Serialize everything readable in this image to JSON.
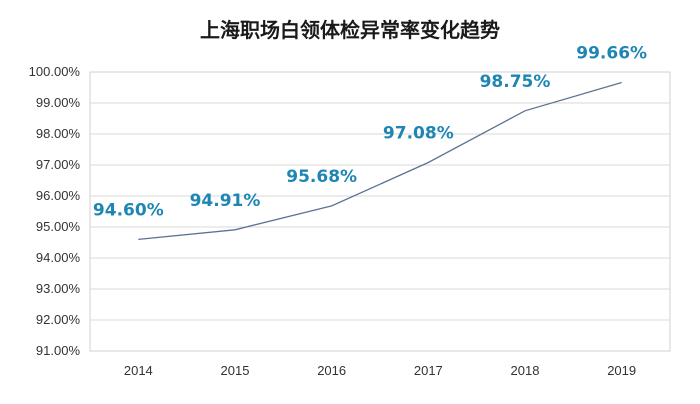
{
  "chart_data": {
    "type": "line",
    "title": "上海职场白领体检异常率变化趋势",
    "categories": [
      "2014",
      "2015",
      "2016",
      "2017",
      "2018",
      "2019"
    ],
    "series": [
      {
        "values": [
          94.6,
          94.91,
          95.68,
          97.08,
          98.75,
          99.66
        ],
        "labels": [
          "94.60%",
          "94.91%",
          "95.68%",
          "97.08%",
          "98.75%",
          "99.66%"
        ]
      }
    ],
    "ylim": [
      91.0,
      100.0
    ],
    "yticks": [
      "91.00%",
      "92.00%",
      "93.00%",
      "94.00%",
      "95.00%",
      "96.00%",
      "97.00%",
      "98.00%",
      "99.00%",
      "100.00%"
    ],
    "grid": true,
    "legend": "none",
    "colors": {
      "line": "#5b7393",
      "data_label": "#1f86b4",
      "grid": "#d9d9d9",
      "axis": "#bfbfbf"
    }
  }
}
